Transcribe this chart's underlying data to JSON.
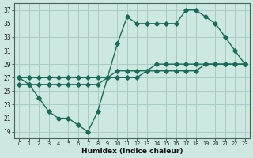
{
  "xlabel": "Humidex (Indice chaleur)",
  "bg_color": "#cce8e0",
  "grid_color": "#a8ccC4",
  "line_color": "#1a6b5a",
  "xlim": [
    -0.5,
    23.5
  ],
  "ylim": [
    18,
    38
  ],
  "xticks": [
    0,
    1,
    2,
    3,
    4,
    5,
    6,
    7,
    8,
    9,
    10,
    11,
    12,
    13,
    14,
    15,
    16,
    17,
    18,
    19,
    20,
    21,
    22,
    23
  ],
  "yticks": [
    19,
    21,
    23,
    25,
    27,
    29,
    31,
    33,
    35,
    37
  ],
  "line1_x": [
    0,
    1,
    2,
    3,
    4,
    5,
    6,
    7,
    8,
    9,
    10,
    11,
    12,
    13,
    14,
    15,
    16,
    17,
    18,
    19,
    20,
    21,
    22,
    23
  ],
  "line1_y": [
    27,
    27,
    27,
    27,
    27,
    27,
    27,
    27,
    27,
    27,
    28,
    28,
    28,
    28,
    29,
    29,
    29,
    29,
    29,
    29,
    29,
    29,
    29,
    29
  ],
  "line2_x": [
    0,
    1,
    2,
    3,
    4,
    5,
    6,
    7,
    8,
    9,
    10,
    11,
    12,
    13,
    14,
    15,
    16,
    17,
    18,
    19,
    20,
    21,
    22,
    23
  ],
  "line2_y": [
    26,
    26,
    26,
    26,
    26,
    26,
    26,
    26,
    26,
    27,
    27,
    27,
    27,
    28,
    28,
    28,
    28,
    28,
    28,
    29,
    29,
    29,
    29,
    29
  ],
  "line3_x": [
    0,
    1,
    2,
    3,
    4,
    5,
    6,
    7,
    8,
    9,
    10,
    11,
    12,
    13,
    14,
    15,
    16,
    17,
    18,
    19,
    20,
    21,
    22,
    23
  ],
  "line3_y": [
    27,
    26,
    24,
    22,
    21,
    21,
    20,
    19,
    22,
    27,
    32,
    36,
    35,
    35,
    35,
    35,
    35,
    37,
    37,
    36,
    35,
    33,
    31,
    29
  ]
}
